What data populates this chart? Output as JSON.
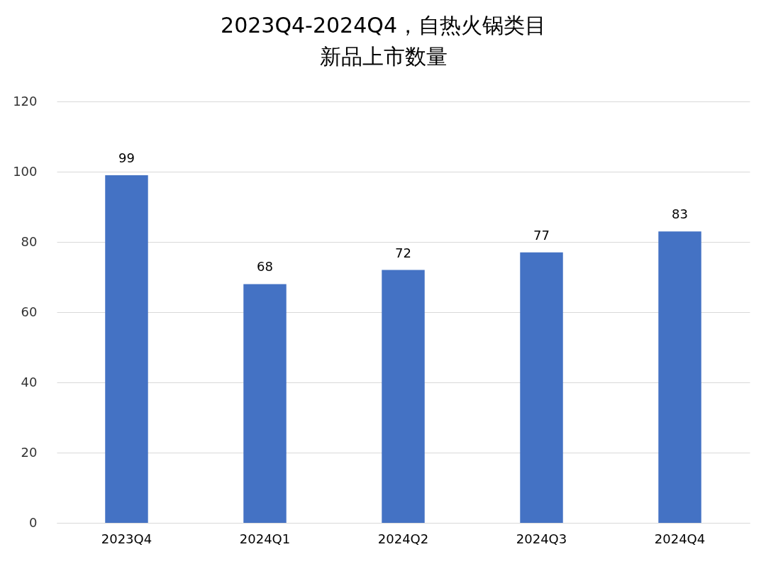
{
  "chart_data": {
    "type": "bar",
    "title": "2023Q4-2024Q4，自热火锅类目",
    "subtitle": "新品上市数量",
    "categories": [
      "2023Q4",
      "2024Q1",
      "2024Q2",
      "2024Q3",
      "2024Q4"
    ],
    "values": [
      99,
      68,
      72,
      77,
      83
    ],
    "color": "#4472c4",
    "ylim": [
      0,
      120
    ],
    "yticks": [
      0,
      20,
      40,
      60,
      80,
      100,
      120
    ],
    "grid": "y",
    "data_labels": true
  }
}
